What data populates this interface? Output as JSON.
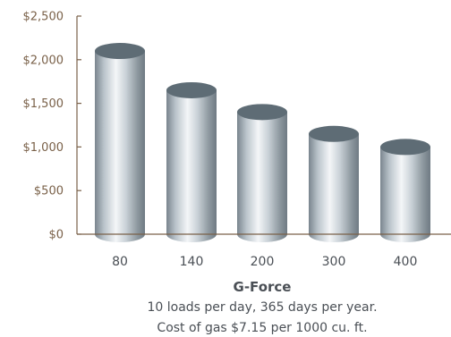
{
  "chart_data": {
    "type": "bar",
    "style": "3d-cylinder",
    "title": "",
    "xlabel": "G-Force",
    "ylabel": "",
    "categories": [
      "80",
      "140",
      "200",
      "300",
      "400"
    ],
    "values": [
      2100,
      1650,
      1400,
      1150,
      1000
    ],
    "ylim": [
      0,
      2500
    ],
    "yticks": [
      0,
      500,
      1000,
      1500,
      2000,
      2500
    ],
    "ytick_labels": [
      "$0",
      "$500",
      "$1,000",
      "$1,500",
      "$2,000",
      "$2,500"
    ],
    "grid": false,
    "legend": "none",
    "caption_lines": [
      "10 loads per day, 365 days per year.",
      "Cost of gas $7.15 per 1000 cu. ft."
    ],
    "colors": {
      "axis": "#7a6149",
      "tick_text": "#7a6149",
      "bar_top": "#5e6c75",
      "bar_light": "#f4f6f8",
      "bar_dark": "#6f7a83"
    }
  }
}
